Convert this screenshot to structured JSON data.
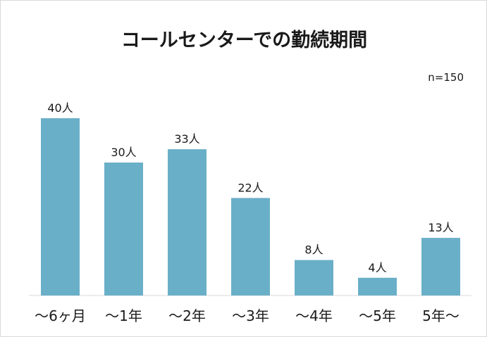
{
  "chart_data": {
    "type": "bar",
    "title": "コールセンターでの勤続期間",
    "note": "n=150",
    "categories": [
      "～6ヶ月",
      "～1年",
      "～2年",
      "～3年",
      "～4年",
      "～5年",
      "5年～"
    ],
    "values": [
      40,
      30,
      33,
      22,
      8,
      4,
      13
    ],
    "value_labels": [
      "40人",
      "30人",
      "33人",
      "22人",
      "8人",
      "4人",
      "13人"
    ],
    "xlabel": "",
    "ylabel": "",
    "ylim": [
      0,
      40
    ],
    "grid": false,
    "legend": "none",
    "bar_color": "#6aafc8",
    "axis_color": "#d9d9d9"
  }
}
